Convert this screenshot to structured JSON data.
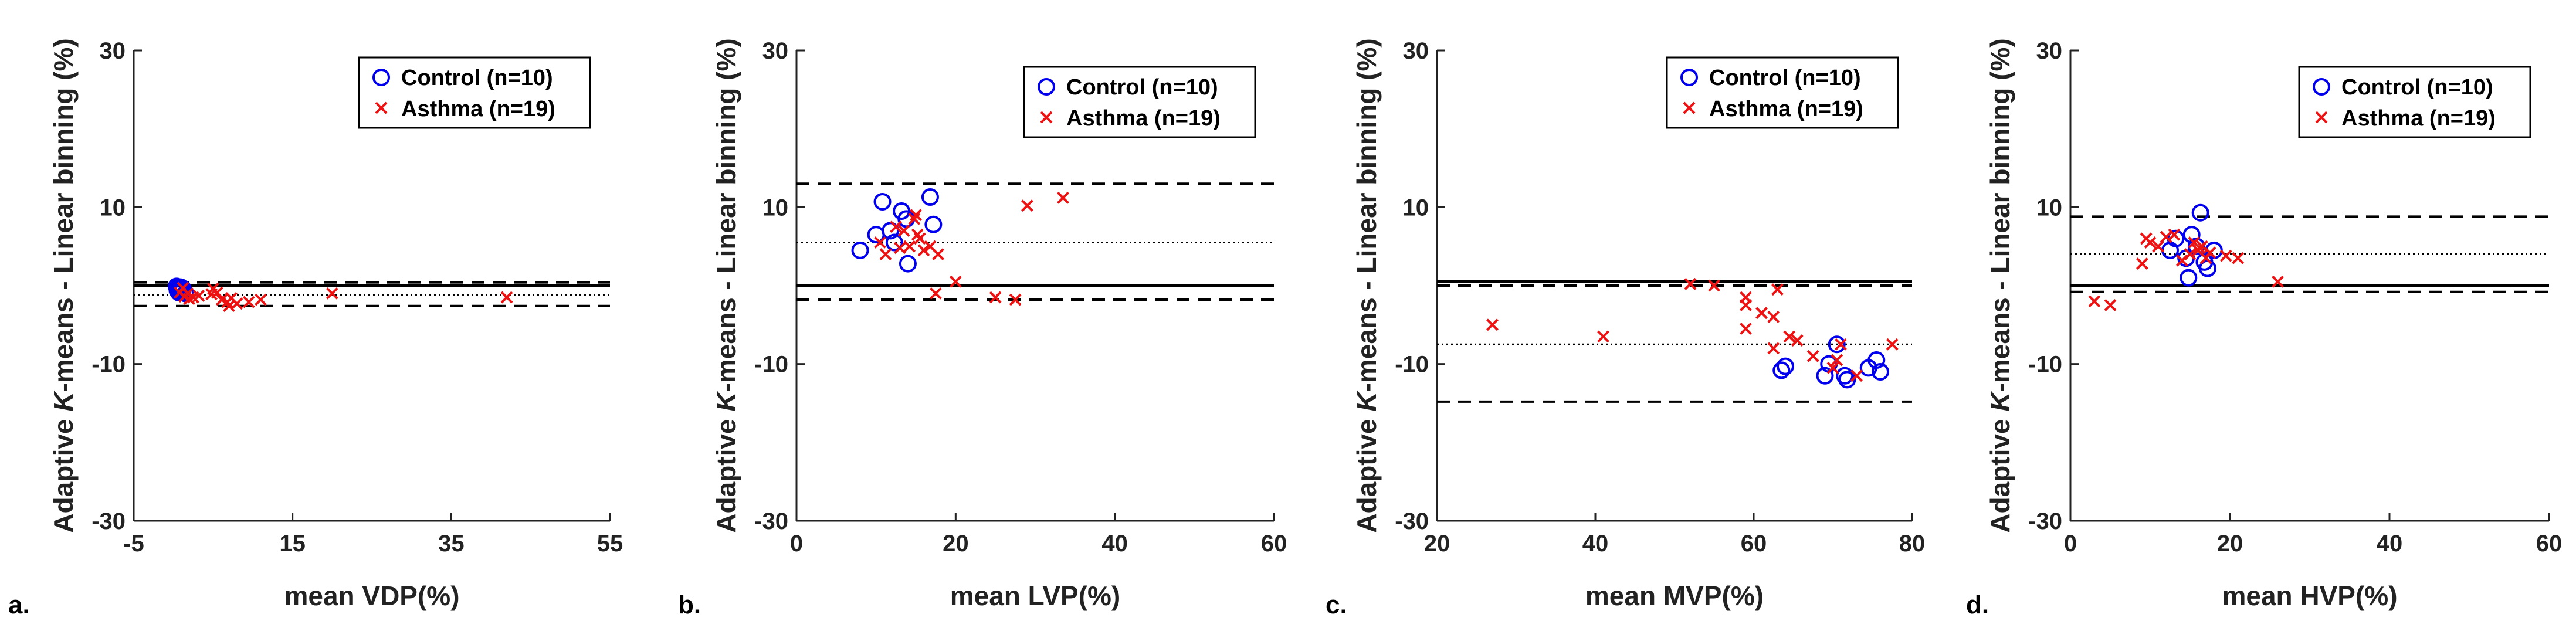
{
  "colors": {
    "control": "#0000ee",
    "asthma": "#ee1111",
    "axis": "#222222",
    "line": "#000000"
  },
  "chart_data": [
    {
      "type": "scatter",
      "panel_label": "a.",
      "xlabel": "mean VDP(%)",
      "ylabel_parts": [
        "Adaptive ",
        "K",
        "-means - Linear binning (%)"
      ],
      "xlim": [
        -5,
        55
      ],
      "ylim": [
        -30,
        30
      ],
      "xticks": [
        "-5",
        "15",
        "35",
        "55"
      ],
      "xtick_values": [
        -5,
        15,
        35,
        55
      ],
      "yticks": [
        "-30",
        "-10",
        "10",
        "30"
      ],
      "ytick_values": [
        -30,
        -10,
        10,
        30
      ],
      "hlines": {
        "zero": 0,
        "mean": -1.2,
        "upper_loa": 0.4,
        "lower_loa": -2.6
      },
      "legend": [
        "Control (n=10)",
        "Asthma (n=19)"
      ],
      "series": [
        {
          "name": "Control (n=10)",
          "marker": "circle",
          "points": [
            [
              0.4,
              -0.1
            ],
            [
              0.6,
              -0.3
            ],
            [
              0.8,
              -0.5
            ],
            [
              1.0,
              -0.7
            ],
            [
              0.5,
              -0.6
            ],
            [
              1.2,
              -0.4
            ],
            [
              0.7,
              -0.9
            ],
            [
              1.5,
              -1.0
            ],
            [
              0.9,
              -0.2
            ],
            [
              1.1,
              -0.8
            ]
          ]
        },
        {
          "name": "Asthma (n=19)",
          "marker": "x",
          "points": [
            [
              0.8,
              -0.9
            ],
            [
              1.4,
              -1.4
            ],
            [
              2.0,
              -1.7
            ],
            [
              2.5,
              -1.5
            ],
            [
              1.8,
              -1.0
            ],
            [
              3.2,
              -1.3
            ],
            [
              5.0,
              -0.4
            ],
            [
              5.5,
              -0.9
            ],
            [
              6.1,
              -1.8
            ],
            [
              6.8,
              -2.1
            ],
            [
              7.3,
              -1.6
            ],
            [
              7.0,
              -2.6
            ],
            [
              8.0,
              -2.3
            ],
            [
              9.5,
              -2.1
            ],
            [
              11.0,
              -1.8
            ],
            [
              20.0,
              -1.0
            ],
            [
              42.0,
              -1.5
            ],
            [
              1.2,
              -0.3
            ],
            [
              4.8,
              -1.1
            ]
          ]
        }
      ]
    },
    {
      "type": "scatter",
      "panel_label": "b.",
      "xlabel": "mean LVP(%)",
      "ylabel_parts": [
        "Adaptive ",
        "K",
        "-means - Linear binning (%)"
      ],
      "xlim": [
        0,
        60
      ],
      "ylim": [
        -30,
        30
      ],
      "xticks": [
        "0",
        "20",
        "40",
        "60"
      ],
      "xtick_values": [
        0,
        20,
        40,
        60
      ],
      "yticks": [
        "-30",
        "-10",
        "10",
        "30"
      ],
      "ytick_values": [
        -30,
        -10,
        10,
        30
      ],
      "hlines": {
        "zero": 0,
        "mean": 5.5,
        "upper_loa": 13.0,
        "lower_loa": -1.8
      },
      "legend": [
        "Control (n=10)",
        "Asthma (n=19)"
      ],
      "series": [
        {
          "name": "Control (n=10)",
          "marker": "circle",
          "points": [
            [
              8.0,
              4.5
            ],
            [
              10.0,
              6.5
            ],
            [
              10.8,
              10.7
            ],
            [
              11.8,
              7.0
            ],
            [
              12.3,
              5.5
            ],
            [
              13.2,
              9.5
            ],
            [
              13.8,
              8.5
            ],
            [
              14.0,
              2.8
            ],
            [
              16.8,
              11.3
            ],
            [
              17.2,
              7.8
            ]
          ]
        },
        {
          "name": "Asthma (n=19)",
          "marker": "x",
          "points": [
            [
              10.5,
              5.5
            ],
            [
              11.2,
              4.0
            ],
            [
              12.5,
              7.5
            ],
            [
              13.5,
              7.0
            ],
            [
              14.2,
              5.0
            ],
            [
              14.8,
              8.5
            ],
            [
              15.0,
              9.0
            ],
            [
              15.5,
              6.0
            ],
            [
              16.0,
              4.5
            ],
            [
              16.8,
              5.0
            ],
            [
              17.8,
              4.0
            ],
            [
              17.5,
              -1.0
            ],
            [
              20.0,
              0.5
            ],
            [
              25.0,
              -1.5
            ],
            [
              27.5,
              -1.8
            ],
            [
              29.0,
              10.2
            ],
            [
              33.5,
              11.2
            ],
            [
              15.2,
              6.5
            ],
            [
              13.0,
              4.8
            ]
          ]
        }
      ]
    },
    {
      "type": "scatter",
      "panel_label": "c.",
      "xlabel": "mean MVP(%)",
      "ylabel_parts": [
        "Adaptive ",
        "K",
        "-means - Linear binning (%)"
      ],
      "xlim": [
        20,
        80
      ],
      "ylim": [
        -30,
        30
      ],
      "xticks": [
        "20",
        "40",
        "60",
        "80"
      ],
      "xtick_values": [
        20,
        40,
        60,
        80
      ],
      "yticks": [
        "-30",
        "-10",
        "10",
        "30"
      ],
      "ytick_values": [
        -30,
        -10,
        10,
        30
      ],
      "hlines": {
        "zero": 0.5,
        "mean": -7.5,
        "upper_loa": 0.0,
        "lower_loa": -14.8
      },
      "legend": [
        "Control (n=10)",
        "Asthma (n=19)"
      ],
      "series": [
        {
          "name": "Control (n=10)",
          "marker": "circle",
          "points": [
            [
              63.5,
              -10.8
            ],
            [
              64.0,
              -10.3
            ],
            [
              69.0,
              -11.5
            ],
            [
              69.5,
              -10.0
            ],
            [
              70.5,
              -7.5
            ],
            [
              71.5,
              -11.5
            ],
            [
              71.8,
              -12.0
            ],
            [
              74.5,
              -10.5
            ],
            [
              75.5,
              -9.5
            ],
            [
              76.0,
              -11.0
            ]
          ]
        },
        {
          "name": "Asthma (n=19)",
          "marker": "x",
          "points": [
            [
              27.0,
              -5.0
            ],
            [
              41.0,
              -6.5
            ],
            [
              52.0,
              0.2
            ],
            [
              55.0,
              0.0
            ],
            [
              59.0,
              -1.5
            ],
            [
              59.0,
              -2.5
            ],
            [
              59.0,
              -5.5
            ],
            [
              61.0,
              -3.5
            ],
            [
              62.5,
              -4.0
            ],
            [
              62.5,
              -8.0
            ],
            [
              63.0,
              -0.5
            ],
            [
              64.5,
              -6.5
            ],
            [
              65.5,
              -7.0
            ],
            [
              67.5,
              -9.0
            ],
            [
              70.0,
              -10.5
            ],
            [
              70.5,
              -9.5
            ],
            [
              71.0,
              -7.5
            ],
            [
              73.0,
              -11.5
            ],
            [
              77.5,
              -7.5
            ]
          ]
        }
      ]
    },
    {
      "type": "scatter",
      "panel_label": "d.",
      "xlabel": "mean HVP(%)",
      "ylabel_parts": [
        "Adaptive ",
        "K",
        "-means - Linear binning (%)"
      ],
      "xlim": [
        0,
        60
      ],
      "ylim": [
        -30,
        30
      ],
      "xticks": [
        "0",
        "20",
        "40",
        "60"
      ],
      "xtick_values": [
        0,
        20,
        40,
        60
      ],
      "yticks": [
        "-30",
        "-10",
        "10",
        "30"
      ],
      "ytick_values": [
        -30,
        -10,
        10,
        30
      ],
      "hlines": {
        "zero": 0,
        "mean": 4.0,
        "upper_loa": 8.8,
        "lower_loa": -0.8
      },
      "legend": [
        "Control (n=10)",
        "Asthma (n=19)"
      ],
      "series": [
        {
          "name": "Control (n=10)",
          "marker": "circle",
          "points": [
            [
              12.5,
              4.5
            ],
            [
              13.2,
              6.0
            ],
            [
              14.5,
              3.5
            ],
            [
              14.8,
              1.0
            ],
            [
              15.2,
              6.5
            ],
            [
              15.8,
              5.0
            ],
            [
              16.3,
              9.3
            ],
            [
              16.8,
              3.0
            ],
            [
              17.2,
              2.2
            ],
            [
              18.0,
              4.5
            ]
          ]
        },
        {
          "name": "Asthma (n=19)",
          "marker": "x",
          "points": [
            [
              3.0,
              -2.0
            ],
            [
              5.0,
              -2.5
            ],
            [
              9.0,
              2.8
            ],
            [
              9.5,
              6.0
            ],
            [
              10.0,
              5.5
            ],
            [
              11.0,
              5.0
            ],
            [
              12.0,
              6.2
            ],
            [
              13.0,
              6.5
            ],
            [
              14.0,
              3.2
            ],
            [
              15.0,
              4.0
            ],
            [
              15.5,
              5.5
            ],
            [
              16.0,
              4.5
            ],
            [
              16.5,
              5.0
            ],
            [
              17.0,
              3.5
            ],
            [
              17.5,
              4.2
            ],
            [
              19.5,
              3.8
            ],
            [
              21.0,
              3.5
            ],
            [
              26.0,
              0.5
            ],
            [
              16.2,
              4.8
            ]
          ]
        }
      ]
    }
  ]
}
